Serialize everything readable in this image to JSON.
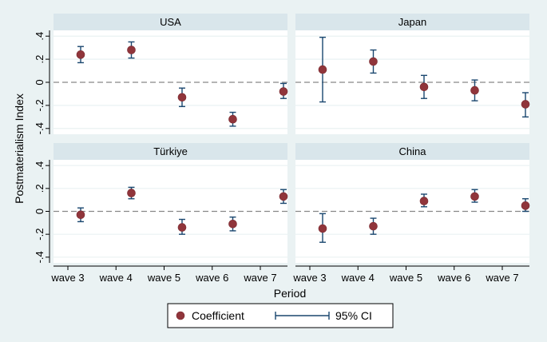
{
  "chart_data": {
    "type": "scatter",
    "subtype": "coefficient plot with 95% CI error bars",
    "categories": [
      "wave 3",
      "wave 4",
      "wave 5",
      "wave 6",
      "wave 7"
    ],
    "xlabel": "Period",
    "ylabel": "Postmaterialism Index",
    "ylim": [
      -0.45,
      0.45
    ],
    "yticks": [
      {
        "value": 0.4,
        "label": ".4"
      },
      {
        "value": 0.2,
        "label": ".2"
      },
      {
        "value": 0,
        "label": "0"
      },
      {
        "value": -0.2,
        "label": "-.2"
      },
      {
        "value": -0.4,
        "label": "-.4"
      }
    ],
    "reference_line": 0,
    "panels": [
      {
        "title": "USA",
        "points": [
          {
            "wave": "wave 3",
            "coef": 0.24,
            "lo": 0.17,
            "hi": 0.31
          },
          {
            "wave": "wave 4",
            "coef": 0.28,
            "lo": 0.21,
            "hi": 0.35
          },
          {
            "wave": "wave 5",
            "coef": -0.13,
            "lo": -0.21,
            "hi": -0.05
          },
          {
            "wave": "wave 6",
            "coef": -0.32,
            "lo": -0.38,
            "hi": -0.26
          },
          {
            "wave": "wave 7",
            "coef": -0.08,
            "lo": -0.14,
            "hi": -0.01
          }
        ]
      },
      {
        "title": "Japan",
        "points": [
          {
            "wave": "wave 3",
            "coef": 0.11,
            "lo": -0.17,
            "hi": 0.39
          },
          {
            "wave": "wave 4",
            "coef": 0.18,
            "lo": 0.08,
            "hi": 0.28
          },
          {
            "wave": "wave 5",
            "coef": -0.04,
            "lo": -0.14,
            "hi": 0.06
          },
          {
            "wave": "wave 6",
            "coef": -0.07,
            "lo": -0.16,
            "hi": 0.02
          },
          {
            "wave": "wave 7",
            "coef": -0.19,
            "lo": -0.3,
            "hi": -0.09
          }
        ]
      },
      {
        "title": "Türkiye",
        "points": [
          {
            "wave": "wave 3",
            "coef": -0.03,
            "lo": -0.09,
            "hi": 0.03
          },
          {
            "wave": "wave 4",
            "coef": 0.16,
            "lo": 0.11,
            "hi": 0.21
          },
          {
            "wave": "wave 5",
            "coef": -0.14,
            "lo": -0.2,
            "hi": -0.07
          },
          {
            "wave": "wave 6",
            "coef": -0.11,
            "lo": -0.17,
            "hi": -0.05
          },
          {
            "wave": "wave 7",
            "coef": 0.13,
            "lo": 0.07,
            "hi": 0.19
          }
        ]
      },
      {
        "title": "China",
        "points": [
          {
            "wave": "wave 3",
            "coef": -0.15,
            "lo": -0.27,
            "hi": -0.02
          },
          {
            "wave": "wave 4",
            "coef": -0.13,
            "lo": -0.2,
            "hi": -0.06
          },
          {
            "wave": "wave 5",
            "coef": 0.09,
            "lo": 0.04,
            "hi": 0.15
          },
          {
            "wave": "wave 6",
            "coef": 0.13,
            "lo": 0.08,
            "hi": 0.19
          },
          {
            "wave": "wave 7",
            "coef": 0.05,
            "lo": 0.0,
            "hi": 0.11
          }
        ]
      }
    ],
    "legend": {
      "position": "bottom-center",
      "items": [
        {
          "marker": "dot",
          "label": "Coefficient"
        },
        {
          "marker": "ci-bar",
          "label": "95% CI"
        }
      ]
    },
    "colors": {
      "coefficient": "#90353b",
      "ci": "#1a476f",
      "reference": "#888888",
      "background": "#eaf2f3",
      "strip": "#d9e6eb"
    }
  }
}
